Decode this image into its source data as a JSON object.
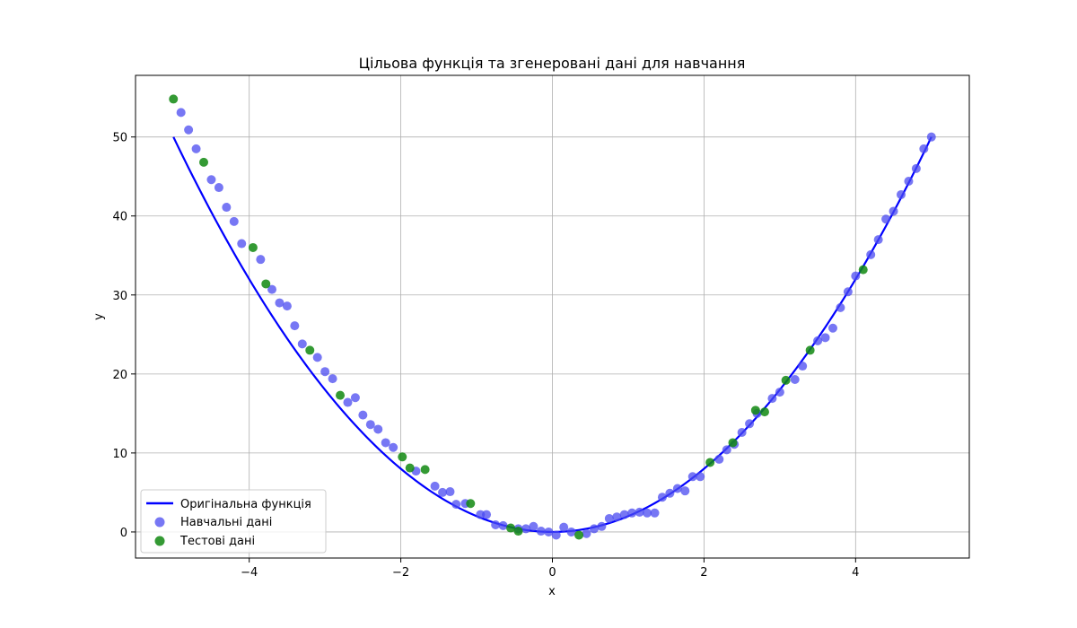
{
  "chart_data": {
    "type": "scatter",
    "title": "Цільова функція та згенеровані дані для навчання",
    "xlabel": "x",
    "ylabel": "y",
    "xlim": [
      -5.5,
      5.5
    ],
    "ylim": [
      -3.3,
      57.8
    ],
    "xticks": [
      -4,
      -2,
      0,
      2,
      4
    ],
    "xtick_labels": [
      "−4",
      "−2",
      "0",
      "2",
      "4"
    ],
    "yticks": [
      0,
      10,
      20,
      30,
      40,
      50
    ],
    "ytick_labels": [
      "0",
      "10",
      "20",
      "30",
      "40",
      "50"
    ],
    "grid": true,
    "legend_position": "lower-left",
    "line_series": {
      "name": "Оригінальна функція",
      "color": "#0000ff",
      "function": "2x^2",
      "x_range": [
        -5,
        5
      ]
    },
    "series": [
      {
        "name": "Навчальні дані",
        "color": "#4a4af0",
        "points": [
          [
            -4.9,
            53.1
          ],
          [
            -4.8,
            50.9
          ],
          [
            -4.7,
            48.5
          ],
          [
            -4.5,
            44.6
          ],
          [
            -4.4,
            43.6
          ],
          [
            -4.3,
            41.1
          ],
          [
            -4.2,
            39.3
          ],
          [
            -4.1,
            36.5
          ],
          [
            -3.85,
            34.5
          ],
          [
            -3.7,
            30.7
          ],
          [
            -3.6,
            29.0
          ],
          [
            -3.5,
            28.6
          ],
          [
            -3.4,
            26.1
          ],
          [
            -3.3,
            23.8
          ],
          [
            -3.1,
            22.1
          ],
          [
            -3.0,
            20.3
          ],
          [
            -2.9,
            19.4
          ],
          [
            -2.7,
            16.4
          ],
          [
            -2.6,
            17.0
          ],
          [
            -2.5,
            14.8
          ],
          [
            -2.4,
            13.6
          ],
          [
            -2.3,
            13.0
          ],
          [
            -2.2,
            11.3
          ],
          [
            -2.1,
            10.7
          ],
          [
            -1.8,
            7.7
          ],
          [
            -1.55,
            5.8
          ],
          [
            -1.45,
            5.0
          ],
          [
            -1.35,
            5.1
          ],
          [
            -1.27,
            3.5
          ],
          [
            -1.15,
            3.6
          ],
          [
            -0.95,
            2.2
          ],
          [
            -0.87,
            2.2
          ],
          [
            -0.75,
            0.9
          ],
          [
            -0.65,
            0.8
          ],
          [
            -0.45,
            0.4
          ],
          [
            -0.35,
            0.4
          ],
          [
            -0.25,
            0.7
          ],
          [
            -0.15,
            0.1
          ],
          [
            -0.05,
            0.0
          ],
          [
            0.05,
            -0.4
          ],
          [
            0.15,
            0.6
          ],
          [
            0.25,
            0.0
          ],
          [
            0.45,
            -0.2
          ],
          [
            0.55,
            0.4
          ],
          [
            0.65,
            0.7
          ],
          [
            0.75,
            1.7
          ],
          [
            0.85,
            1.9
          ],
          [
            0.95,
            2.2
          ],
          [
            1.05,
            2.4
          ],
          [
            1.15,
            2.5
          ],
          [
            1.25,
            2.4
          ],
          [
            1.35,
            2.4
          ],
          [
            1.45,
            4.4
          ],
          [
            1.55,
            4.9
          ],
          [
            1.65,
            5.5
          ],
          [
            1.75,
            5.2
          ],
          [
            1.85,
            7.0
          ],
          [
            1.95,
            7.0
          ],
          [
            2.2,
            9.2
          ],
          [
            2.3,
            10.4
          ],
          [
            2.4,
            11.1
          ],
          [
            2.5,
            12.6
          ],
          [
            2.6,
            13.7
          ],
          [
            2.7,
            15.0
          ],
          [
            2.9,
            16.9
          ],
          [
            3.0,
            17.7
          ],
          [
            3.2,
            19.3
          ],
          [
            3.3,
            21.0
          ],
          [
            3.5,
            24.2
          ],
          [
            3.6,
            24.6
          ],
          [
            3.7,
            25.8
          ],
          [
            3.8,
            28.4
          ],
          [
            3.9,
            30.4
          ],
          [
            4.0,
            32.4
          ],
          [
            4.2,
            35.1
          ],
          [
            4.3,
            37.0
          ],
          [
            4.4,
            39.6
          ],
          [
            4.5,
            40.6
          ],
          [
            4.6,
            42.7
          ],
          [
            4.7,
            44.4
          ],
          [
            4.8,
            46.0
          ],
          [
            4.9,
            48.5
          ],
          [
            5.0,
            50.0
          ]
        ]
      },
      {
        "name": "Тестові дані",
        "color": "#118811",
        "points": [
          [
            -5.0,
            54.8
          ],
          [
            -4.6,
            46.8
          ],
          [
            -3.95,
            36.0
          ],
          [
            -3.78,
            31.4
          ],
          [
            -3.2,
            23.0
          ],
          [
            -2.8,
            17.3
          ],
          [
            -1.98,
            9.5
          ],
          [
            -1.88,
            8.1
          ],
          [
            -1.68,
            7.9
          ],
          [
            -1.08,
            3.6
          ],
          [
            -0.55,
            0.5
          ],
          [
            -0.45,
            0.1
          ],
          [
            0.35,
            -0.4
          ],
          [
            2.08,
            8.8
          ],
          [
            2.38,
            11.3
          ],
          [
            2.68,
            15.4
          ],
          [
            2.8,
            15.2
          ],
          [
            3.08,
            19.2
          ],
          [
            3.4,
            23.0
          ],
          [
            4.1,
            33.2
          ]
        ]
      }
    ]
  }
}
